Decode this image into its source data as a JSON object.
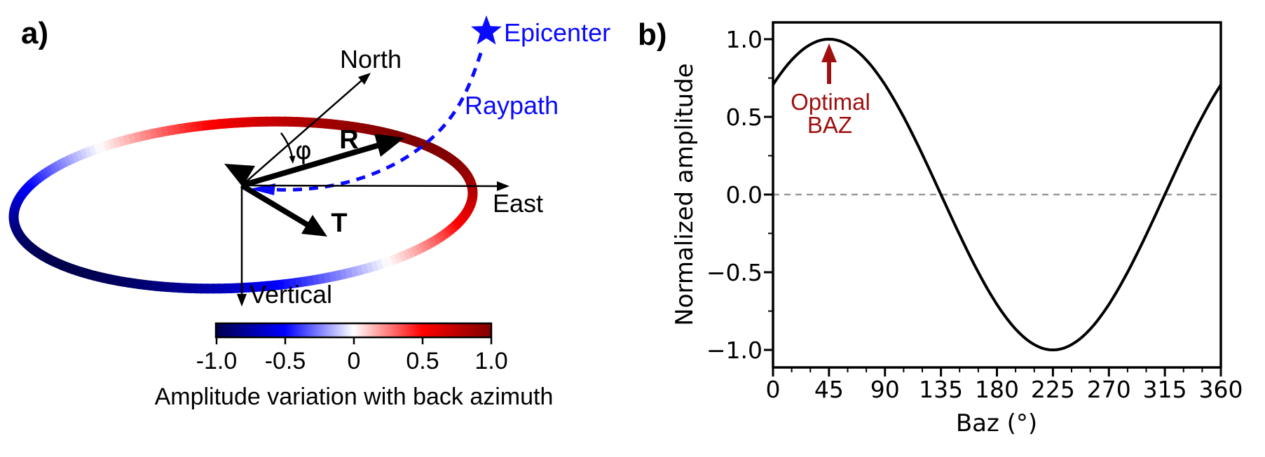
{
  "figure": {
    "panel_a": {
      "label": "a)",
      "axis_labels": {
        "north": "North",
        "east": "East",
        "vertical": "Vertical"
      },
      "component_labels": {
        "radial": "R",
        "transverse": "T",
        "angle": "φ"
      },
      "epicenter_label": "Epicenter",
      "raypath_label": "Raypath",
      "colors": {
        "annotation_blue": "#0a0aff",
        "axis_black": "#000000"
      },
      "colorbar": {
        "tick_labels": [
          "-1.0",
          "-0.5",
          "0",
          "0.5",
          "1.0"
        ],
        "tick_values": [
          -1.0,
          -0.5,
          0,
          0.5,
          1.0
        ],
        "caption": "Amplitude variation with back azimuth",
        "colormap_name": "seismic",
        "colormap_anchors": [
          "#00004d",
          "#0000ff",
          "#ffffff",
          "#ff0000",
          "#7f0000"
        ]
      }
    },
    "panel_b": {
      "label": "b)",
      "annotation": {
        "line1": "Optimal",
        "line2": "BAZ",
        "color": "#a01010"
      }
    }
  },
  "chart_data": {
    "type": "line",
    "title": "",
    "xlabel": "Baz (°)",
    "ylabel": "Normalized amplitude",
    "xlim": [
      0,
      360
    ],
    "ylim": [
      -1.11,
      1.11
    ],
    "grid": false,
    "x_ticks": [
      0,
      45,
      90,
      135,
      180,
      225,
      270,
      315,
      360
    ],
    "x_tick_labels": [
      "0",
      "45",
      "90",
      "135",
      "180",
      "225",
      "270",
      "315",
      "360"
    ],
    "x_minor_tick_step": 15,
    "y_ticks": [
      1.0,
      0.5,
      0.0,
      -0.5,
      -1.0
    ],
    "y_tick_labels": [
      "1.0",
      "0.5",
      "0.0",
      "−0.5",
      "−1.0"
    ],
    "y_minor_tick_step": 0.25,
    "series": [
      {
        "name": "normalized amplitude",
        "color": "#000000",
        "formula": "cos(baz − 45°)",
        "x": [
          0,
          45,
          90,
          135,
          180,
          225,
          270,
          315,
          360
        ],
        "y": [
          0.71,
          1.0,
          0.71,
          0.0,
          -0.71,
          -1.0,
          -0.71,
          0.0,
          0.71
        ]
      }
    ],
    "curve": {
      "amplitude": 1.0,
      "phase_deg": 45
    },
    "reference_line": {
      "y": 0.0,
      "style": "dashed",
      "color": "#9a9a9a"
    },
    "annotations": [
      {
        "text": "Optimal BAZ",
        "x": 45,
        "y": 1.0,
        "color": "#a01010",
        "arrow": true
      }
    ],
    "legend": null
  }
}
